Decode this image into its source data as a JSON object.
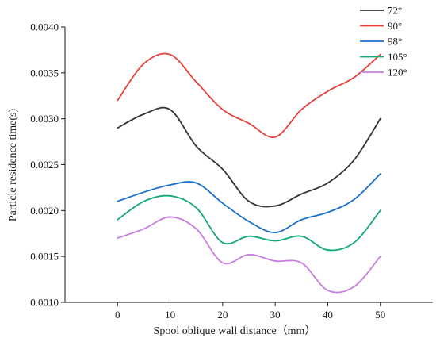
{
  "chart_data": {
    "type": "line",
    "title": "",
    "xlabel": "Spool oblique wall distance（mm）",
    "ylabel": "Particle residence time(s)",
    "xlim": [
      -10,
      60
    ],
    "ylim": [
      0.001,
      0.004
    ],
    "xticks": [
      0,
      10,
      20,
      30,
      40,
      50
    ],
    "xtick_labels": [
      "0",
      "10",
      "20",
      "30",
      "40",
      "50"
    ],
    "yticks": [
      0.001,
      0.0015,
      0.002,
      0.0025,
      0.003,
      0.0035,
      0.004
    ],
    "ytick_labels": [
      "0.0010",
      "0.0015",
      "0.0020",
      "0.0025",
      "0.0030",
      "0.0035",
      "0.0040"
    ],
    "grid": false,
    "legend_position": "top-right",
    "series": [
      {
        "name": "72°",
        "color": "#333333",
        "x": [
          0,
          5,
          10,
          15,
          20,
          25,
          30,
          35,
          40,
          45,
          50
        ],
        "values": [
          0.0029,
          0.00305,
          0.0031,
          0.0027,
          0.00245,
          0.0021,
          0.00205,
          0.00218,
          0.0023,
          0.00255,
          0.003
        ]
      },
      {
        "name": "90°",
        "color": "#e8403a",
        "x": [
          0,
          5,
          10,
          15,
          20,
          25,
          30,
          35,
          40,
          45,
          50
        ],
        "values": [
          0.0032,
          0.0036,
          0.0037,
          0.0034,
          0.0031,
          0.00295,
          0.0028,
          0.0031,
          0.0033,
          0.00345,
          0.0037
        ]
      },
      {
        "name": "98°",
        "color": "#1a6fd0",
        "x": [
          0,
          5,
          10,
          15,
          20,
          25,
          30,
          35,
          40,
          45,
          50
        ],
        "values": [
          0.0021,
          0.0022,
          0.00228,
          0.0023,
          0.00208,
          0.00188,
          0.00176,
          0.0019,
          0.00198,
          0.00212,
          0.0024
        ]
      },
      {
        "name": "105°",
        "color": "#13a878",
        "x": [
          0,
          5,
          10,
          15,
          20,
          25,
          30,
          35,
          40,
          45,
          50
        ],
        "values": [
          0.0019,
          0.0021,
          0.00216,
          0.00203,
          0.00165,
          0.00172,
          0.00167,
          0.00172,
          0.00157,
          0.00165,
          0.002
        ]
      },
      {
        "name": "120°",
        "color": "#c97de0",
        "x": [
          0,
          5,
          10,
          15,
          20,
          25,
          30,
          35,
          40,
          45,
          50
        ],
        "values": [
          0.0017,
          0.0018,
          0.00193,
          0.0018,
          0.00143,
          0.00152,
          0.00145,
          0.00143,
          0.00113,
          0.00117,
          0.0015
        ]
      }
    ]
  }
}
